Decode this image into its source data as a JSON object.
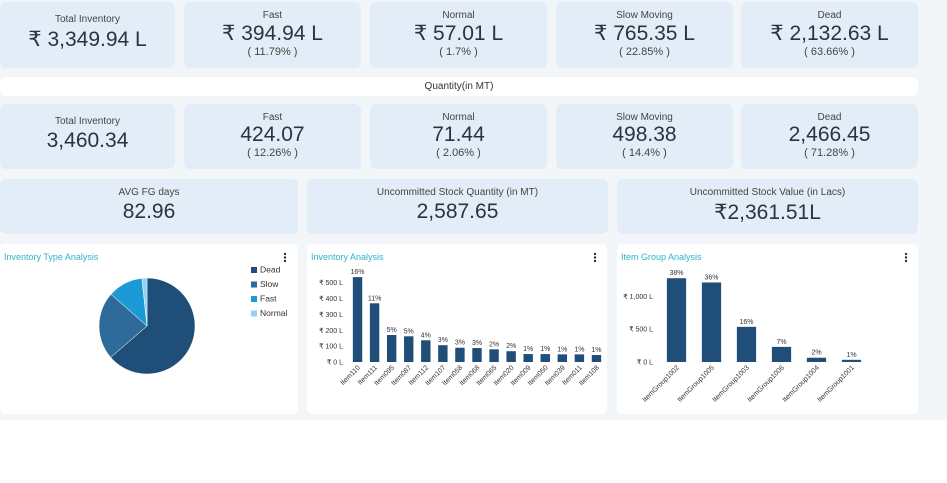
{
  "value_cards": [
    {
      "label": "Total Inventory",
      "value": "₹ 3,349.94 L"
    },
    {
      "label": "Fast",
      "value": "₹ 394.94 L",
      "share": "( 11.79% )"
    },
    {
      "label": "Normal",
      "value": "₹ 57.01 L",
      "share": "( 1.7% )"
    },
    {
      "label": "Slow Moving",
      "value": "₹ 765.35 L",
      "share": "( 22.85% )"
    },
    {
      "label": "Dead",
      "value": "₹ 2,132.63 L",
      "share": "( 63.66% )"
    }
  ],
  "quantity_header": "Quantity(in MT)",
  "quantity_cards": [
    {
      "label": "Total Inventory",
      "value": "3,460.34"
    },
    {
      "label": "Fast",
      "value": "424.07",
      "share": "( 12.26% )"
    },
    {
      "label": "Normal",
      "value": "71.44",
      "share": "( 2.06% )"
    },
    {
      "label": "Slow Moving",
      "value": "498.38",
      "share": "( 14.4% )"
    },
    {
      "label": "Dead",
      "value": "2,466.45",
      "share": "( 71.28% )"
    }
  ],
  "summary_cards": [
    {
      "label": "AVG FG days",
      "value": "82.96"
    },
    {
      "label": "Uncommitted Stock Quantity (in MT)",
      "value": "2,587.65"
    },
    {
      "label": "Uncommitted Stock Value (in Lacs)",
      "value": "₹2,361.51L"
    }
  ],
  "charts": [
    {
      "type": "pie",
      "title": "Inventory Type Analysis",
      "categories": [
        "Dead",
        "Slow",
        "Fast",
        "Normal"
      ],
      "values": [
        63.66,
        22.85,
        11.79,
        1.7
      ],
      "colors": [
        "#1f4e79",
        "#2e6b9a",
        "#1c9ad6",
        "#8fd4f0"
      ]
    },
    {
      "type": "bar",
      "title": "Inventory Analysis",
      "categories": [
        "Item110",
        "Item111",
        "Item095",
        "Item087",
        "Item112",
        "Item107",
        "Item058",
        "Item068",
        "Item065",
        "Item020",
        "Item009",
        "Item050",
        "Item039",
        "Item011",
        "Item108"
      ],
      "values": [
        535,
        370,
        170,
        162,
        137,
        106,
        90,
        88,
        80,
        68,
        50,
        50,
        48,
        48,
        44
      ],
      "share_labels": [
        "16%",
        "11%",
        "5%",
        "5%",
        "4%",
        "3%",
        "3%",
        "3%",
        "2%",
        "2%",
        "1%",
        "1%",
        "1%",
        "1%",
        "1%"
      ],
      "color": "#1f4e79",
      "ylim": [
        0,
        580
      ],
      "yticks": [
        {
          "value": 0,
          "label": "₹ 0 L"
        },
        {
          "value": 100,
          "label": "₹ 100 L"
        },
        {
          "value": 200,
          "label": "₹ 200 L"
        },
        {
          "value": 300,
          "label": "₹ 300 L"
        },
        {
          "value": 400,
          "label": "₹ 400 L"
        },
        {
          "value": 500,
          "label": "₹ 500 L"
        }
      ]
    },
    {
      "type": "bar",
      "title": "Item Group Analysis",
      "categories": [
        "ItemGroup1002",
        "ItemGroup1005",
        "ItemGroup1003",
        "ItemGroup1006",
        "ItemGroup1004",
        "ItemGroup1001"
      ],
      "values": [
        1275,
        1210,
        535,
        230,
        65,
        33
      ],
      "share_labels": [
        "38%",
        "36%",
        "16%",
        "7%",
        "2%",
        "1%"
      ],
      "color": "#1f4e79",
      "ylim": [
        0,
        1400
      ],
      "yticks": [
        {
          "value": 0,
          "label": "₹ 0 L"
        },
        {
          "value": 500,
          "label": "₹ 500 L"
        },
        {
          "value": 1000,
          "label": "₹ 1,000 L"
        }
      ]
    }
  ]
}
